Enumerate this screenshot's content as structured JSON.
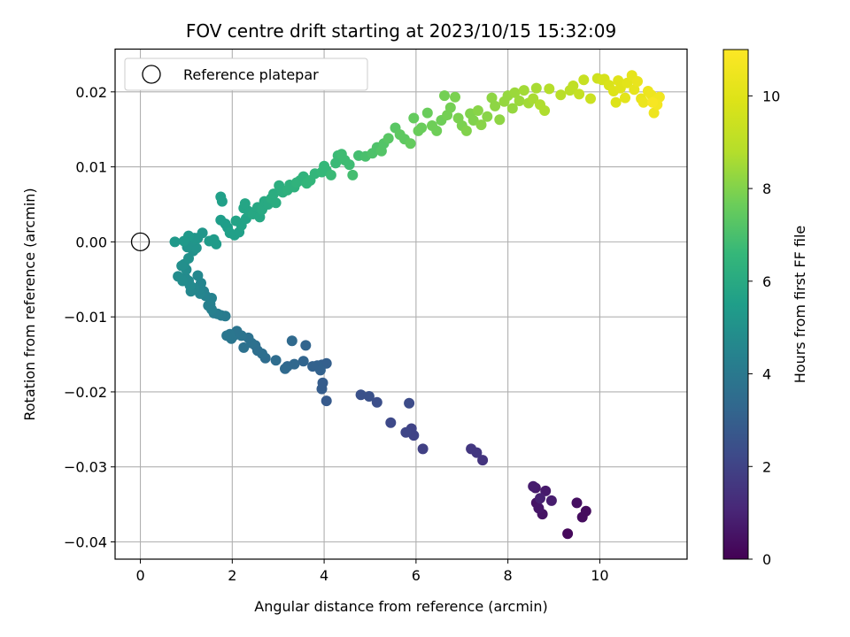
{
  "chart_data": {
    "type": "scatter",
    "title": "FOV centre drift starting at 2023/10/15 15:32:09",
    "xlabel": "Angular distance from reference (arcmin)",
    "ylabel": "Rotation from reference (arcmin)",
    "colorbar_label": "Hours from first FF file",
    "xlim": [
      -0.55,
      11.9
    ],
    "ylim": [
      -0.0423,
      0.0257
    ],
    "clim": [
      0,
      11
    ],
    "x_ticks": [
      0,
      2,
      4,
      6,
      8,
      10
    ],
    "x_tick_labels": [
      "0",
      "2",
      "4",
      "6",
      "8",
      "10"
    ],
    "y_ticks": [
      0.02,
      0.01,
      0.0,
      -0.01,
      -0.02,
      -0.03,
      -0.04
    ],
    "y_tick_labels": [
      "0.02",
      "0.01",
      "0.00",
      "−0.01",
      "−0.02",
      "−0.03",
      "−0.04"
    ],
    "colorbar_ticks": [
      0,
      2,
      4,
      6,
      8,
      10
    ],
    "colorbar_tick_labels": [
      "0",
      "2",
      "4",
      "6",
      "8",
      "10"
    ],
    "grid": true,
    "colormap": "viridis",
    "legend": {
      "position": "upper-left",
      "entries": [
        {
          "label": "Reference platepar",
          "marker": "open-circle"
        }
      ]
    },
    "reference_point": {
      "x": 0,
      "y": 0
    },
    "points": [
      [
        9.3,
        -0.0389,
        0.2
      ],
      [
        9.62,
        -0.0367,
        0.3
      ],
      [
        9.7,
        -0.0359,
        0.3
      ],
      [
        9.5,
        -0.0348,
        0.4
      ],
      [
        8.62,
        -0.0348,
        0.5
      ],
      [
        8.75,
        -0.0363,
        0.5
      ],
      [
        8.67,
        -0.0355,
        0.6
      ],
      [
        8.82,
        -0.0332,
        0.7
      ],
      [
        8.6,
        -0.0328,
        0.7
      ],
      [
        8.55,
        -0.0326,
        0.8
      ],
      [
        8.95,
        -0.0345,
        0.8
      ],
      [
        8.7,
        -0.0342,
        0.9
      ],
      [
        7.45,
        -0.0291,
        1.5
      ],
      [
        7.32,
        -0.0281,
        1.6
      ],
      [
        7.2,
        -0.0276,
        1.6
      ],
      [
        6.15,
        -0.0276,
        1.9
      ],
      [
        5.95,
        -0.0258,
        2.0
      ],
      [
        5.9,
        -0.0249,
        2.0
      ],
      [
        5.78,
        -0.0254,
        2.1
      ],
      [
        5.45,
        -0.0241,
        2.2
      ],
      [
        5.85,
        -0.0215,
        2.3
      ],
      [
        5.15,
        -0.0214,
        2.4
      ],
      [
        4.98,
        -0.0206,
        2.5
      ],
      [
        4.8,
        -0.0204,
        2.5
      ],
      [
        4.05,
        -0.0212,
        2.8
      ],
      [
        3.95,
        -0.0196,
        2.9
      ],
      [
        3.97,
        -0.0188,
        2.9
      ],
      [
        4.05,
        -0.0162,
        3.0
      ],
      [
        3.95,
        -0.0164,
        3.0
      ],
      [
        3.85,
        -0.0165,
        3.1
      ],
      [
        3.92,
        -0.0171,
        3.1
      ],
      [
        3.75,
        -0.0166,
        3.1
      ],
      [
        3.6,
        -0.0138,
        3.2
      ],
      [
        3.55,
        -0.0159,
        3.2
      ],
      [
        3.35,
        -0.0163,
        3.3
      ],
      [
        3.2,
        -0.0166,
        3.3
      ],
      [
        3.3,
        -0.0132,
        3.4
      ],
      [
        3.15,
        -0.0169,
        3.4
      ],
      [
        2.95,
        -0.0158,
        3.5
      ],
      [
        2.72,
        -0.0155,
        3.5
      ],
      [
        2.65,
        -0.0149,
        3.6
      ],
      [
        2.55,
        -0.0145,
        3.6
      ],
      [
        2.5,
        -0.0138,
        3.6
      ],
      [
        2.42,
        -0.0135,
        3.7
      ],
      [
        2.35,
        -0.0128,
        3.7
      ],
      [
        2.25,
        -0.0141,
        3.7
      ],
      [
        2.2,
        -0.0125,
        3.8
      ],
      [
        2.1,
        -0.0119,
        3.8
      ],
      [
        2.03,
        -0.0125,
        3.8
      ],
      [
        1.98,
        -0.0129,
        3.9
      ],
      [
        1.95,
        -0.0123,
        3.9
      ],
      [
        1.88,
        -0.0125,
        3.9
      ],
      [
        1.85,
        -0.0099,
        4.1
      ],
      [
        1.76,
        -0.0098,
        4.1
      ],
      [
        1.68,
        -0.0096,
        4.2
      ],
      [
        1.6,
        -0.0095,
        4.2
      ],
      [
        1.55,
        -0.009,
        4.3
      ],
      [
        1.52,
        -0.0083,
        4.3
      ],
      [
        1.48,
        -0.0085,
        4.3
      ],
      [
        1.55,
        -0.0075,
        4.4
      ],
      [
        1.42,
        -0.0072,
        4.4
      ],
      [
        1.38,
        -0.0066,
        4.4
      ],
      [
        1.3,
        -0.0069,
        4.5
      ],
      [
        1.28,
        -0.0063,
        4.5
      ],
      [
        1.32,
        -0.0055,
        4.5
      ],
      [
        1.25,
        -0.0045,
        4.6
      ],
      [
        1.18,
        -0.0062,
        4.6
      ],
      [
        1.1,
        -0.0066,
        4.6
      ],
      [
        1.08,
        -0.0058,
        4.7
      ],
      [
        1.05,
        -0.0052,
        4.7
      ],
      [
        0.98,
        -0.0048,
        4.7
      ],
      [
        0.92,
        -0.0052,
        4.8
      ],
      [
        0.82,
        -0.0046,
        4.8
      ],
      [
        1.0,
        -0.0037,
        4.8
      ],
      [
        0.95,
        -0.003,
        4.9
      ],
      [
        0.9,
        -0.0032,
        4.9
      ],
      [
        1.05,
        -0.0022,
        5.0
      ],
      [
        1.15,
        -0.0012,
        5.0
      ],
      [
        1.22,
        -0.0008,
        5.1
      ],
      [
        1.02,
        -0.0007,
        5.1
      ],
      [
        1.12,
        0.0001,
        5.1
      ],
      [
        1.25,
        0.0005,
        5.2
      ],
      [
        1.35,
        0.0012,
        5.2
      ],
      [
        1.18,
        0.0005,
        5.2
      ],
      [
        1.05,
        0.0008,
        5.3
      ],
      [
        0.95,
        0.0001,
        5.3
      ],
      [
        0.75,
        0.0,
        5.3
      ],
      [
        1.5,
        0.0001,
        5.4
      ],
      [
        1.65,
        -0.0003,
        5.4
      ],
      [
        1.6,
        0.0003,
        5.4
      ],
      [
        1.75,
        0.0029,
        5.5
      ],
      [
        1.85,
        0.0024,
        5.5
      ],
      [
        1.9,
        0.0019,
        5.5
      ],
      [
        1.95,
        0.0012,
        5.6
      ],
      [
        2.05,
        0.0009,
        5.6
      ],
      [
        2.15,
        0.0013,
        5.6
      ],
      [
        2.2,
        0.0022,
        5.7
      ],
      [
        2.08,
        0.0028,
        5.7
      ],
      [
        2.3,
        0.0031,
        5.7
      ],
      [
        2.25,
        0.0045,
        5.8
      ],
      [
        2.35,
        0.0041,
        5.8
      ],
      [
        2.28,
        0.0051,
        5.8
      ],
      [
        2.45,
        0.0037,
        5.9
      ],
      [
        2.55,
        0.0046,
        5.9
      ],
      [
        2.6,
        0.0033,
        5.9
      ],
      [
        2.65,
        0.0043,
        6.0
      ],
      [
        2.7,
        0.0054,
        6.0
      ],
      [
        2.78,
        0.005,
        6.0
      ],
      [
        2.85,
        0.0058,
        6.1
      ],
      [
        2.9,
        0.0064,
        6.1
      ],
      [
        2.95,
        0.0052,
        6.1
      ],
      [
        3.02,
        0.0075,
        6.2
      ],
      [
        3.1,
        0.0066,
        6.2
      ],
      [
        1.75,
        0.006,
        5.6
      ],
      [
        1.78,
        0.0054,
        5.6
      ],
      [
        3.2,
        0.0069,
        6.3
      ],
      [
        3.25,
        0.0076,
        6.3
      ],
      [
        3.35,
        0.0073,
        6.3
      ],
      [
        3.4,
        0.0079,
        6.4
      ],
      [
        3.48,
        0.0082,
        6.4
      ],
      [
        3.55,
        0.0087,
        6.4
      ],
      [
        3.62,
        0.0078,
        6.5
      ],
      [
        3.7,
        0.0082,
        6.5
      ],
      [
        3.8,
        0.0091,
        6.5
      ],
      [
        3.95,
        0.0093,
        6.6
      ],
      [
        4.0,
        0.0101,
        6.6
      ],
      [
        4.05,
        0.0095,
        6.6
      ],
      [
        4.15,
        0.0089,
        6.7
      ],
      [
        4.25,
        0.0105,
        6.7
      ],
      [
        4.3,
        0.0115,
        6.7
      ],
      [
        4.38,
        0.0117,
        6.8
      ],
      [
        4.45,
        0.0109,
        6.8
      ],
      [
        4.55,
        0.0103,
        6.8
      ],
      [
        4.62,
        0.0089,
        6.9
      ],
      [
        4.75,
        0.0115,
        6.9
      ],
      [
        4.9,
        0.0114,
        7.0
      ],
      [
        5.05,
        0.0118,
        7.1
      ],
      [
        5.15,
        0.0126,
        7.1
      ],
      [
        5.25,
        0.0121,
        7.2
      ],
      [
        5.3,
        0.0131,
        7.2
      ],
      [
        5.4,
        0.0138,
        7.3
      ],
      [
        5.55,
        0.0152,
        7.3
      ],
      [
        5.65,
        0.0143,
        7.4
      ],
      [
        5.75,
        0.0137,
        7.4
      ],
      [
        5.88,
        0.0131,
        7.5
      ],
      [
        5.95,
        0.0165,
        7.5
      ],
      [
        6.05,
        0.0148,
        7.6
      ],
      [
        6.12,
        0.0152,
        7.6
      ],
      [
        6.25,
        0.0172,
        7.6
      ],
      [
        6.35,
        0.0155,
        7.7
      ],
      [
        6.45,
        0.0148,
        7.7
      ],
      [
        6.55,
        0.0162,
        7.7
      ],
      [
        6.62,
        0.0195,
        7.8
      ],
      [
        6.68,
        0.0169,
        7.8
      ],
      [
        6.75,
        0.0179,
        7.8
      ],
      [
        6.85,
        0.0193,
        7.9
      ],
      [
        6.92,
        0.0165,
        7.9
      ],
      [
        7.0,
        0.0155,
        7.9
      ],
      [
        7.1,
        0.0148,
        8.0
      ],
      [
        7.18,
        0.0171,
        8.0
      ],
      [
        7.25,
        0.0162,
        8.0
      ],
      [
        7.35,
        0.0175,
        8.1
      ],
      [
        7.42,
        0.0156,
        8.1
      ],
      [
        7.55,
        0.0167,
        8.1
      ],
      [
        7.65,
        0.0192,
        8.2
      ],
      [
        7.72,
        0.0181,
        8.2
      ],
      [
        7.82,
        0.0163,
        8.2
      ],
      [
        7.92,
        0.0187,
        8.3
      ],
      [
        8.0,
        0.0195,
        8.3
      ],
      [
        8.1,
        0.0178,
        8.3
      ],
      [
        8.15,
        0.0199,
        8.4
      ],
      [
        8.25,
        0.0188,
        8.4
      ],
      [
        8.35,
        0.0202,
        8.5
      ],
      [
        8.45,
        0.0185,
        8.5
      ],
      [
        8.55,
        0.0191,
        8.6
      ],
      [
        8.62,
        0.0205,
        8.6
      ],
      [
        8.7,
        0.0183,
        8.7
      ],
      [
        8.8,
        0.0175,
        8.7
      ],
      [
        8.9,
        0.0204,
        8.8
      ],
      [
        9.15,
        0.0196,
        8.9
      ],
      [
        9.35,
        0.0202,
        9.0
      ],
      [
        9.42,
        0.0208,
        9.1
      ],
      [
        9.55,
        0.0197,
        9.2
      ],
      [
        9.65,
        0.0216,
        9.3
      ],
      [
        9.8,
        0.0191,
        9.4
      ],
      [
        9.95,
        0.0218,
        9.5
      ],
      [
        10.05,
        0.0216,
        9.6
      ],
      [
        10.1,
        0.0217,
        9.7
      ],
      [
        10.2,
        0.0209,
        9.8
      ],
      [
        10.3,
        0.0201,
        9.9
      ],
      [
        10.35,
        0.0186,
        9.9
      ],
      [
        10.4,
        0.0215,
        10.0
      ],
      [
        10.45,
        0.0205,
        10.0
      ],
      [
        10.55,
        0.0192,
        10.1
      ],
      [
        10.6,
        0.0212,
        10.1
      ],
      [
        10.7,
        0.0222,
        10.2
      ],
      [
        10.75,
        0.0203,
        10.2
      ],
      [
        10.82,
        0.0214,
        10.3
      ],
      [
        10.9,
        0.0191,
        10.3
      ],
      [
        10.95,
        0.0186,
        10.4
      ],
      [
        11.05,
        0.0201,
        10.4
      ],
      [
        11.12,
        0.0196,
        10.5
      ],
      [
        11.18,
        0.0172,
        10.5
      ],
      [
        11.22,
        0.0189,
        10.6
      ],
      [
        11.3,
        0.0193,
        10.6
      ],
      [
        11.25,
        0.0183,
        10.7
      ],
      [
        11.15,
        0.0186,
        10.8
      ]
    ]
  }
}
